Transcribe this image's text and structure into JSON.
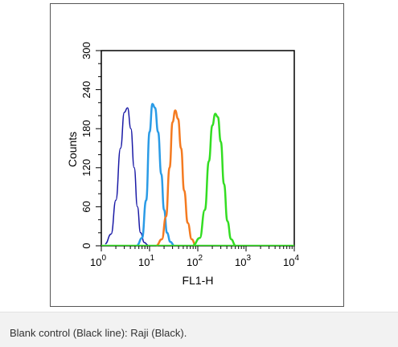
{
  "caption": "Blank control (Black line): Raji (Black).",
  "chart_data": {
    "type": "line",
    "title": "",
    "xlabel": "FL1-H",
    "ylabel": "Counts",
    "x_scale": "log",
    "xlim": [
      1,
      10000
    ],
    "ylim": [
      0,
      300
    ],
    "x_ticks": [
      {
        "base": "10",
        "exp": "0"
      },
      {
        "base": "10",
        "exp": "1"
      },
      {
        "base": "10",
        "exp": "2"
      },
      {
        "base": "10",
        "exp": "3"
      },
      {
        "base": "10",
        "exp": "4"
      }
    ],
    "y_ticks": [
      "0",
      "60",
      "120",
      "180",
      "240",
      "300"
    ],
    "grid": false,
    "series": [
      {
        "color": "#1a1aa6",
        "x": [
          1.2,
          1.6,
          2.0,
          2.5,
          3.0,
          3.5,
          4.1,
          4.8,
          5.6,
          6.5,
          7.8,
          9.3
        ],
        "y": [
          3,
          18,
          70,
          150,
          205,
          212,
          180,
          120,
          60,
          20,
          5,
          1
        ]
      },
      {
        "color": "#2a9be6",
        "x": [
          5.5,
          7.0,
          8.5,
          10.0,
          11.5,
          13.0,
          15.0,
          17.5,
          20.0,
          23.0,
          27.0,
          32.0
        ],
        "y": [
          1,
          12,
          70,
          175,
          218,
          212,
          175,
          110,
          55,
          20,
          6,
          1
        ]
      },
      {
        "color": "#f47a20",
        "x": [
          14.0,
          18.0,
          22.0,
          26.0,
          30.0,
          34.0,
          39.0,
          45.0,
          52.0,
          62.0,
          75.0,
          90.0
        ],
        "y": [
          1,
          10,
          45,
          120,
          190,
          208,
          195,
          150,
          85,
          35,
          10,
          1
        ]
      },
      {
        "color": "#33dd22",
        "x": [
          80.0,
          110.0,
          140.0,
          170.0,
          200.0,
          230.0,
          260.0,
          300.0,
          350.0,
          410.0,
          490.0,
          600.0
        ],
        "y": [
          1,
          12,
          55,
          130,
          185,
          203,
          198,
          160,
          95,
          38,
          10,
          1
        ]
      }
    ]
  }
}
